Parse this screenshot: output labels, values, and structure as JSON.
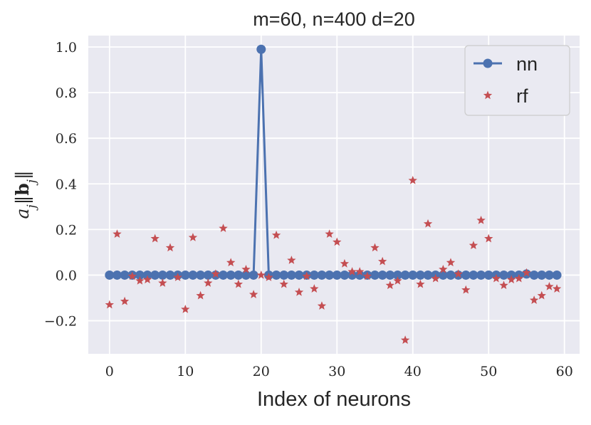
{
  "chart_data": {
    "type": "scatter",
    "title": "m=60, n=400 d=20",
    "xlabel": "Index of neurons",
    "ylabel": "a_j||b_j||",
    "xlim": [
      -2.8,
      62
    ],
    "ylim": [
      -0.345,
      1.05
    ],
    "xticks": [
      0,
      10,
      20,
      30,
      40,
      50,
      60
    ],
    "xtick_labels": [
      "0",
      "10",
      "20",
      "30",
      "40",
      "50",
      "60"
    ],
    "yticks": [
      -0.2,
      0.0,
      0.2,
      0.4,
      0.6,
      0.8,
      1.0
    ],
    "ytick_labels": [
      "−0.2",
      "0.0",
      "0.2",
      "0.4",
      "0.6",
      "0.8",
      "1.0"
    ],
    "grid": true,
    "legend_position": "top-right",
    "background": "#e9e9f1",
    "series": [
      {
        "name": "nn",
        "style": "line-marker",
        "marker": "circle",
        "color": "#4c72b0",
        "x": [
          0,
          1,
          2,
          3,
          4,
          5,
          6,
          7,
          8,
          9,
          10,
          11,
          12,
          13,
          14,
          15,
          16,
          17,
          18,
          19,
          20,
          21,
          22,
          23,
          24,
          25,
          26,
          27,
          28,
          29,
          30,
          31,
          32,
          33,
          34,
          35,
          36,
          37,
          38,
          39,
          40,
          41,
          42,
          43,
          44,
          45,
          46,
          47,
          48,
          49,
          50,
          51,
          52,
          53,
          54,
          55,
          56,
          57,
          58,
          59
        ],
        "y": [
          0,
          0,
          0,
          0,
          0,
          0,
          0,
          0,
          0,
          0,
          0,
          0,
          0,
          0,
          0,
          0,
          0,
          0,
          0,
          0,
          0.99,
          0,
          0,
          0,
          0,
          0,
          0,
          0,
          0,
          0,
          0,
          0,
          0,
          0,
          0,
          0,
          0,
          0,
          0,
          0,
          0,
          0,
          0,
          0,
          0,
          0,
          0,
          0,
          0,
          0,
          0,
          0,
          0,
          0,
          0,
          0.005,
          0,
          0,
          0,
          0
        ]
      },
      {
        "name": "rf",
        "style": "marker",
        "marker": "star",
        "color": "#c44e52",
        "x": [
          0,
          1,
          2,
          3,
          4,
          5,
          6,
          7,
          8,
          9,
          10,
          11,
          12,
          13,
          14,
          15,
          16,
          17,
          18,
          19,
          20,
          21,
          22,
          23,
          24,
          25,
          26,
          27,
          28,
          29,
          30,
          31,
          32,
          33,
          34,
          35,
          36,
          37,
          38,
          39,
          40,
          41,
          42,
          43,
          44,
          45,
          46,
          47,
          48,
          49,
          50,
          51,
          52,
          53,
          54,
          55,
          56,
          57,
          58,
          59
        ],
        "y": [
          -0.13,
          0.18,
          -0.115,
          -0.005,
          -0.025,
          -0.02,
          0.16,
          -0.035,
          0.12,
          -0.01,
          -0.15,
          0.165,
          -0.09,
          -0.035,
          0.005,
          0.205,
          0.055,
          -0.04,
          0.025,
          -0.085,
          0.0,
          -0.01,
          0.175,
          -0.04,
          0.065,
          -0.075,
          -0.005,
          -0.06,
          -0.135,
          0.18,
          0.145,
          0.05,
          0.015,
          0.015,
          -0.005,
          0.12,
          0.06,
          -0.045,
          -0.025,
          -0.285,
          0.415,
          -0.04,
          0.225,
          -0.015,
          0.025,
          0.055,
          0.005,
          -0.065,
          0.13,
          0.24,
          0.16,
          -0.015,
          -0.045,
          -0.02,
          -0.015,
          0.01,
          -0.11,
          -0.09,
          -0.05,
          -0.06
        ]
      }
    ]
  }
}
